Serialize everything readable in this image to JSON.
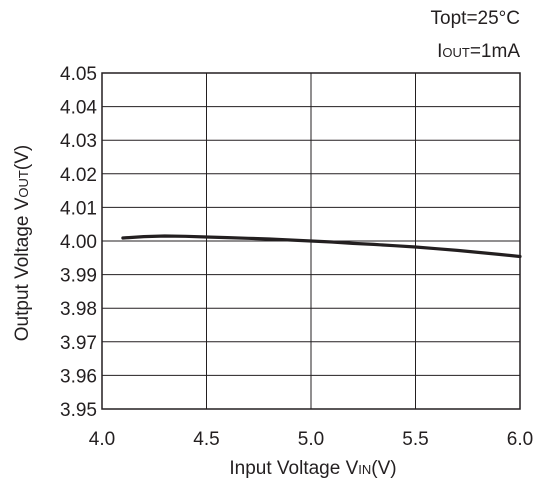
{
  "conditions": {
    "line1": "Topt=25°C",
    "iout_main": "I",
    "iout_sub": "OUT",
    "iout_tail": "=1mA"
  },
  "chart_data": {
    "type": "line",
    "xlabel": "Input Voltage VIN(V)",
    "xlabel_parts": {
      "main": "Input Voltage V",
      "sub": "IN",
      "tail": "(V)"
    },
    "ylabel": "Output Voltage VOUT(V)",
    "ylabel_parts": {
      "main": "Output Voltage V",
      "sub": "OUT",
      "tail": "(V)"
    },
    "xlim": [
      4.0,
      6.0
    ],
    "ylim": [
      3.95,
      4.05
    ],
    "xticks": [
      4.0,
      4.5,
      5.0,
      5.5,
      6.0
    ],
    "xtick_labels": [
      "4.0",
      "4.5",
      "5.0",
      "5.5",
      "6.0"
    ],
    "yticks": [
      4.05,
      4.04,
      4.03,
      4.02,
      4.01,
      4.0,
      3.99,
      3.98,
      3.97,
      3.96,
      3.95
    ],
    "ytick_labels": [
      "4.05",
      "4.04",
      "4.03",
      "4.02",
      "4.01",
      "4.00",
      "3.99",
      "3.98",
      "3.97",
      "3.96",
      "3.95"
    ],
    "grid": true,
    "series": [
      {
        "color": "#231f20",
        "x": [
          4.1,
          4.2,
          4.3,
          4.4,
          4.5,
          4.6,
          4.7,
          4.8,
          4.9,
          5.0,
          5.1,
          5.2,
          5.3,
          5.4,
          5.5,
          5.6,
          5.7,
          5.8,
          5.9,
          6.0
        ],
        "y": [
          4.0009,
          4.0013,
          4.0015,
          4.0014,
          4.0012,
          4.001,
          4.0008,
          4.0006,
          4.0003,
          4.0,
          3.9997,
          3.9993,
          3.999,
          3.9986,
          3.9982,
          3.9977,
          3.9972,
          3.9966,
          3.996,
          3.9954
        ]
      }
    ]
  }
}
